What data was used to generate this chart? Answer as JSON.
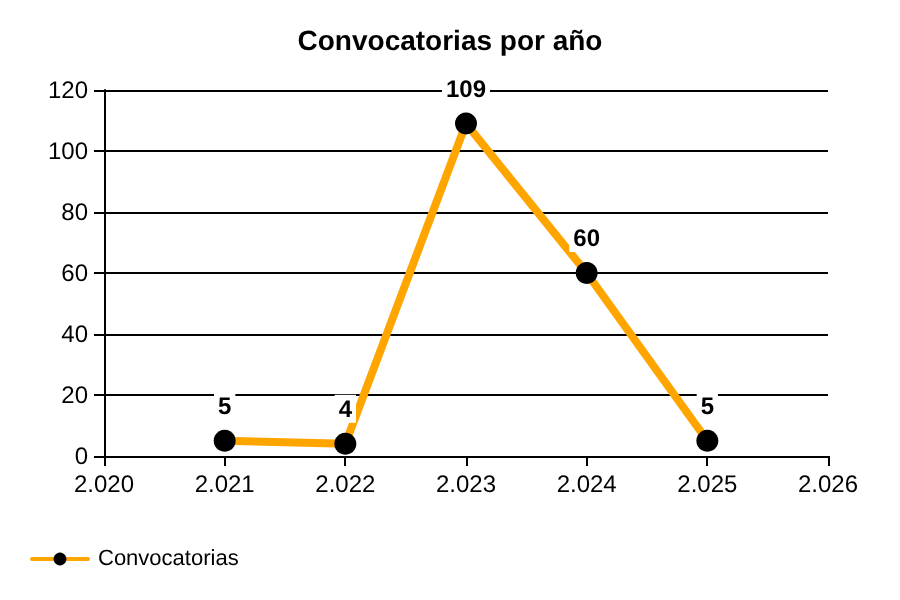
{
  "chart_data": {
    "type": "line",
    "title": "Convocatorias por año",
    "x": [
      2021,
      2022,
      2023,
      2024,
      2025
    ],
    "series": [
      {
        "name": "Convocatorias",
        "color": "#ffa500",
        "values": [
          5,
          4,
          109,
          60,
          5
        ]
      }
    ],
    "xlim": [
      2020,
      2026
    ],
    "xticks": [
      {
        "value": 2020,
        "label": "2.020"
      },
      {
        "value": 2021,
        "label": "2.021"
      },
      {
        "value": 2022,
        "label": "2.022"
      },
      {
        "value": 2023,
        "label": "2.023"
      },
      {
        "value": 2024,
        "label": "2.024"
      },
      {
        "value": 2025,
        "label": "2.025"
      },
      {
        "value": 2026,
        "label": "2.026"
      }
    ],
    "ylim": [
      0,
      120
    ],
    "yticks": [
      0,
      20,
      40,
      60,
      80,
      100,
      120
    ],
    "grid": "y",
    "legend": "bottom left",
    "marker": "circle",
    "line_style": "solid",
    "data_labels": true
  }
}
